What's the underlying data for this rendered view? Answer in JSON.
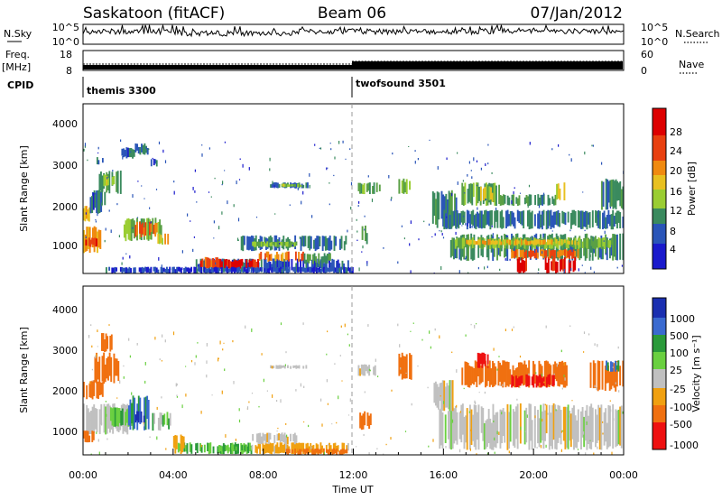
{
  "header": {
    "station": "Saskatoon (fitACF)",
    "beam": "Beam 06",
    "date": "07/Jan/2012"
  },
  "top_panels": {
    "nsky_label": "N.Sky",
    "nsky_ticks": [
      "10^5",
      "10^0"
    ],
    "nsearch_label": "N.Search",
    "nsearch_ticks": [
      "10^5",
      "10^0"
    ],
    "freq_label": "Freq.",
    "freq_unit": "[MHz]",
    "freq_ticks": [
      "18",
      "8"
    ],
    "nave_label": "Nave",
    "nave_ticks": [
      "60",
      "0"
    ],
    "cpid_label": "CPID",
    "cpid_modes": [
      {
        "name": "themis 3300",
        "start_hour": 0
      },
      {
        "name": "twofsound 3501",
        "start_hour": 12
      }
    ]
  },
  "axes": {
    "ylabel": "Slant Range [km]",
    "yticks": [
      "1000",
      "2000",
      "3000",
      "4000"
    ],
    "xlabel": "Time UT",
    "xticks": [
      "00:00",
      "04:00",
      "08:00",
      "12:00",
      "16:00",
      "20:00",
      "00:00"
    ]
  },
  "colorbars": {
    "power": {
      "label": "Power [dB]",
      "ticks": [
        "4",
        "8",
        "12",
        "16",
        "20",
        "24",
        "28"
      ]
    },
    "velocity": {
      "label": "Velocity [m s⁻¹]",
      "ticks": [
        "1000",
        "500",
        "100",
        "25",
        "-25",
        "-100",
        "-500",
        "-1000"
      ]
    }
  },
  "colors": {
    "power_scale": [
      "#1a1acc",
      "#2a55b8",
      "#3a8a5e",
      "#5aa045",
      "#9acd32",
      "#e8c020",
      "#f08a10",
      "#e84010",
      "#dd0000"
    ],
    "velocity_scale": [
      "#1a2fb0",
      "#3a6ad0",
      "#2a9a3a",
      "#6ad040",
      "#c0c0c0",
      "#f0a010",
      "#f07010",
      "#ee1010"
    ]
  },
  "chart_data": [
    {
      "type": "heatmap",
      "title": "",
      "xlabel": "Time UT",
      "ylabel": "Slant Range [km]",
      "xlim_hours": [
        0,
        24
      ],
      "ylim": [
        180,
        4500
      ],
      "zlabel": "Power [dB]",
      "zlim": [
        0,
        30
      ],
      "regions": [
        {
          "t0": 0.0,
          "t1": 0.8,
          "r0": 700,
          "r1": 1400,
          "z": 20
        },
        {
          "t0": 0.1,
          "t1": 0.7,
          "r0": 850,
          "r1": 1100,
          "z": 27
        },
        {
          "t0": 0.0,
          "t1": 0.3,
          "r0": 1500,
          "r1": 1900,
          "z": 18
        },
        {
          "t0": 0.4,
          "t1": 1.0,
          "r0": 1900,
          "r1": 2300,
          "z": 8
        },
        {
          "t0": 0.7,
          "t1": 1.7,
          "r0": 2200,
          "r1": 2800,
          "z": 10
        },
        {
          "t0": 0.9,
          "t1": 1.4,
          "r0": 2400,
          "r1": 2700,
          "z": 16
        },
        {
          "t0": 0.3,
          "t1": 0.9,
          "r0": 1700,
          "r1": 2300,
          "z": 6
        },
        {
          "t0": 1.8,
          "t1": 3.5,
          "r0": 1000,
          "r1": 1600,
          "z": 12
        },
        {
          "t0": 2.3,
          "t1": 3.3,
          "r0": 1100,
          "r1": 1500,
          "z": 24
        },
        {
          "t0": 3.3,
          "t1": 3.8,
          "r0": 900,
          "r1": 1200,
          "z": 18
        },
        {
          "t0": 1.7,
          "t1": 2.3,
          "r0": 3100,
          "r1": 3400,
          "z": 5
        },
        {
          "t0": 2.3,
          "t1": 2.9,
          "r0": 3200,
          "r1": 3500,
          "z": 6
        },
        {
          "t0": 0.6,
          "t1": 0.9,
          "r0": 2950,
          "r1": 3150,
          "z": 5
        },
        {
          "t0": 3.0,
          "t1": 3.3,
          "r0": 2900,
          "r1": 3100,
          "z": 5
        },
        {
          "t0": 8.3,
          "t1": 10.0,
          "r0": 2350,
          "r1": 2500,
          "z": 6
        },
        {
          "t0": 8.8,
          "t1": 9.7,
          "r0": 2380,
          "r1": 2470,
          "z": 14
        },
        {
          "t0": 7.0,
          "t1": 11.7,
          "r0": 750,
          "r1": 1150,
          "z": 7
        },
        {
          "t0": 7.5,
          "t1": 9.5,
          "r0": 850,
          "r1": 1000,
          "z": 13
        },
        {
          "t0": 5.0,
          "t1": 11.8,
          "r0": 200,
          "r1": 560,
          "z": 5
        },
        {
          "t0": 5.2,
          "t1": 6.0,
          "r0": 300,
          "r1": 600,
          "z": 24
        },
        {
          "t0": 6.0,
          "t1": 7.8,
          "r0": 300,
          "r1": 550,
          "z": 28
        },
        {
          "t0": 7.8,
          "t1": 9.8,
          "r0": 480,
          "r1": 740,
          "z": 22
        },
        {
          "t0": 9.8,
          "t1": 11.0,
          "r0": 420,
          "r1": 700,
          "z": 10
        },
        {
          "t0": 12.3,
          "t1": 12.7,
          "r0": 900,
          "r1": 1400,
          "z": 9
        },
        {
          "t0": 12.2,
          "t1": 13.2,
          "r0": 2200,
          "r1": 2500,
          "z": 11
        },
        {
          "t0": 14.0,
          "t1": 14.6,
          "r0": 2200,
          "r1": 2600,
          "z": 14
        },
        {
          "t0": 15.5,
          "t1": 16.6,
          "r0": 1300,
          "r1": 2300,
          "z": 8
        },
        {
          "t0": 16.3,
          "t1": 24.0,
          "r0": 500,
          "r1": 1200,
          "z": 8
        },
        {
          "t0": 16.5,
          "t1": 23.5,
          "r0": 800,
          "r1": 1100,
          "z": 13
        },
        {
          "t0": 17.0,
          "t1": 22.0,
          "r0": 900,
          "r1": 1050,
          "z": 19
        },
        {
          "t0": 16.0,
          "t1": 24.0,
          "r0": 1300,
          "r1": 1800,
          "z": 7
        },
        {
          "t0": 16.8,
          "t1": 18.5,
          "r0": 1900,
          "r1": 2500,
          "z": 11
        },
        {
          "t0": 17.5,
          "t1": 18.2,
          "r0": 2000,
          "r1": 2400,
          "z": 16
        },
        {
          "t0": 18.5,
          "t1": 21.0,
          "r0": 1900,
          "r1": 2200,
          "z": 9
        },
        {
          "t0": 21.0,
          "t1": 21.4,
          "r0": 2000,
          "r1": 2500,
          "z": 16
        },
        {
          "t0": 23.0,
          "t1": 24.0,
          "r0": 1800,
          "r1": 2600,
          "z": 8
        },
        {
          "t0": 19.2,
          "t1": 19.7,
          "r0": 180,
          "r1": 600,
          "z": 29
        },
        {
          "t0": 20.5,
          "t1": 22.0,
          "r0": 180,
          "r1": 600,
          "z": 29
        },
        {
          "t0": 19.0,
          "t1": 22.0,
          "r0": 550,
          "r1": 800,
          "z": 24
        },
        {
          "t0": 1.0,
          "t1": 12.0,
          "r0": 180,
          "r1": 350,
          "z": 4
        }
      ]
    },
    {
      "type": "heatmap",
      "title": "",
      "xlabel": "Time UT",
      "ylabel": "Slant Range [km]",
      "xlim_hours": [
        0,
        24
      ],
      "ylim": [
        180,
        4500
      ],
      "zlabel": "Velocity [m s⁻¹]",
      "zlim": [
        -1000,
        1000
      ],
      "regions": [
        {
          "t0": 0.0,
          "t1": 0.9,
          "r0": 1600,
          "r1": 2100,
          "z": -150
        },
        {
          "t0": 0.5,
          "t1": 1.6,
          "r0": 2000,
          "r1": 2800,
          "z": -300
        },
        {
          "t0": 0.8,
          "t1": 1.3,
          "r0": 2800,
          "r1": 3300,
          "z": -400
        },
        {
          "t0": 0.0,
          "t1": 2.0,
          "r0": 700,
          "r1": 1500,
          "z": 0
        },
        {
          "t0": 1.2,
          "t1": 2.3,
          "r0": 900,
          "r1": 1400,
          "z": 50
        },
        {
          "t0": 2.0,
          "t1": 3.0,
          "r0": 800,
          "r1": 1700,
          "z": 120
        },
        {
          "t0": 2.3,
          "t1": 2.8,
          "r0": 1000,
          "r1": 1300,
          "z": 600
        },
        {
          "t0": 3.0,
          "t1": 3.9,
          "r0": 800,
          "r1": 1300,
          "z": 40
        },
        {
          "t0": 0.0,
          "t1": 0.5,
          "r0": 500,
          "r1": 800,
          "z": -150
        },
        {
          "t0": 4.2,
          "t1": 7.5,
          "r0": 200,
          "r1": 500,
          "z": 60
        },
        {
          "t0": 6.0,
          "t1": 7.6,
          "r0": 260,
          "r1": 450,
          "z": 50
        },
        {
          "t0": 7.5,
          "t1": 11.8,
          "r0": 200,
          "r1": 500,
          "z": -50
        },
        {
          "t0": 7.5,
          "t1": 9.5,
          "r0": 450,
          "r1": 750,
          "z": 0
        },
        {
          "t0": 9.0,
          "t1": 11.8,
          "r0": 180,
          "r1": 350,
          "z": -150
        },
        {
          "t0": 8.3,
          "t1": 10.0,
          "r0": 2380,
          "r1": 2480,
          "z": 0
        },
        {
          "t0": 12.2,
          "t1": 13.0,
          "r0": 2200,
          "r1": 2500,
          "z": 0
        },
        {
          "t0": 12.2,
          "t1": 12.8,
          "r0": 800,
          "r1": 1300,
          "z": -150
        },
        {
          "t0": 14.0,
          "t1": 14.6,
          "r0": 2100,
          "r1": 2800,
          "z": -300
        },
        {
          "t0": 15.8,
          "t1": 24.0,
          "r0": 300,
          "r1": 1500,
          "z": 0
        },
        {
          "t0": 15.5,
          "t1": 16.5,
          "r0": 1300,
          "r1": 2100,
          "z": 0
        },
        {
          "t0": 16.8,
          "t1": 21.5,
          "r0": 1900,
          "r1": 2600,
          "z": -400
        },
        {
          "t0": 17.5,
          "t1": 18.0,
          "r0": 2400,
          "r1": 2800,
          "z": -600
        },
        {
          "t0": 19.0,
          "t1": 21.0,
          "r0": 1900,
          "r1": 2250,
          "z": -600
        },
        {
          "t0": 22.5,
          "t1": 24.0,
          "r0": 1800,
          "r1": 2600,
          "z": -150
        },
        {
          "t0": 23.2,
          "t1": 23.8,
          "r0": 2300,
          "r1": 2600,
          "z": 100
        },
        {
          "t0": 4.0,
          "t1": 4.5,
          "r0": 200,
          "r1": 700,
          "z": -60
        }
      ]
    }
  ]
}
